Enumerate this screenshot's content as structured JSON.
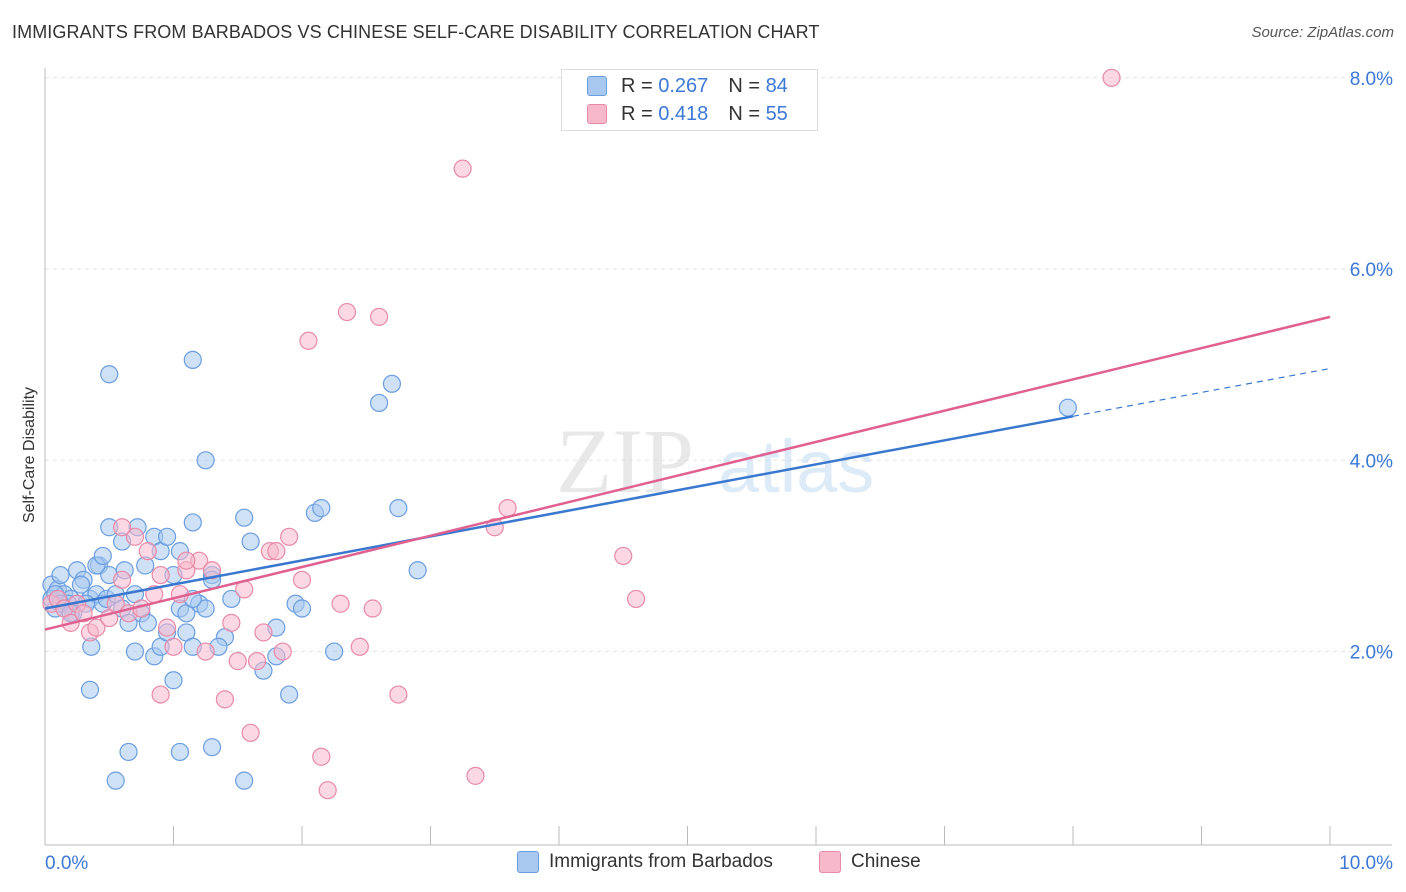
{
  "header": {
    "title": "IMMIGRANTS FROM BARBADOS VS CHINESE SELF-CARE DISABILITY CORRELATION CHART",
    "source": "Source: ZipAtlas.com"
  },
  "legend": {
    "rows": [
      {
        "r_label": "R =",
        "r_value": "0.267",
        "n_label": "N =",
        "n_value": "84"
      },
      {
        "r_label": "R =",
        "r_value": "0.418",
        "n_label": "N =",
        "n_value": "55"
      }
    ],
    "series_labels": [
      "Immigrants from Barbados",
      "Chinese"
    ]
  },
  "watermark": {
    "zip": "ZIP",
    "atlas": "atlas"
  },
  "colors": {
    "barbados_fill": "#a8c8f0",
    "barbados_stroke": "#6a9ee0",
    "barbados_line": "#3a78d0",
    "chinese_fill": "#f7b8cc",
    "chinese_stroke": "#e88aa8",
    "chinese_line": "#e06090",
    "axis_text": "#3c78d8"
  },
  "chart_data": {
    "type": "scatter",
    "title": "IMMIGRANTS FROM BARBADOS VS CHINESE SELF-CARE DISABILITY CORRELATION CHART",
    "xlabel": "",
    "ylabel": "Self-Care Disability",
    "xlim": [
      0,
      10
    ],
    "ylim": [
      0,
      8
    ],
    "x_tick_labels": [
      "0.0%",
      "10.0%"
    ],
    "y_ticks": [
      2,
      4,
      6,
      8
    ],
    "y_tick_labels": [
      "2.0%",
      "4.0%",
      "6.0%",
      "8.0%"
    ],
    "grid": true,
    "legend_position": "top-center",
    "series": [
      {
        "name": "Immigrants from Barbados",
        "r": 0.267,
        "n": 84,
        "trend": {
          "x0": 0,
          "y0": 2.45,
          "x1": 8.0,
          "y1": 4.46,
          "dashed_to_x": 10.0,
          "dashed_to_y": 4.96
        },
        "points": [
          [
            0.05,
            2.7
          ],
          [
            0.1,
            2.65
          ],
          [
            0.15,
            2.6
          ],
          [
            0.2,
            2.55
          ],
          [
            0.08,
            2.45
          ],
          [
            0.12,
            2.8
          ],
          [
            0.18,
            2.5
          ],
          [
            0.22,
            2.4
          ],
          [
            0.25,
            2.85
          ],
          [
            0.3,
            2.75
          ],
          [
            0.35,
            2.55
          ],
          [
            0.4,
            2.6
          ],
          [
            0.45,
            2.5
          ],
          [
            0.28,
            2.7
          ],
          [
            0.32,
            2.5
          ],
          [
            0.36,
            2.05
          ],
          [
            0.42,
            2.9
          ],
          [
            0.48,
            2.55
          ],
          [
            0.5,
            2.8
          ],
          [
            0.55,
            2.6
          ],
          [
            0.6,
            2.45
          ],
          [
            0.62,
            2.85
          ],
          [
            0.65,
            2.3
          ],
          [
            0.7,
            2.0
          ],
          [
            0.75,
            2.4
          ],
          [
            0.8,
            2.3
          ],
          [
            0.85,
            1.95
          ],
          [
            0.9,
            2.05
          ],
          [
            0.95,
            2.2
          ],
          [
            1.0,
            2.8
          ],
          [
            1.05,
            2.45
          ],
          [
            1.1,
            2.2
          ],
          [
            1.15,
            2.05
          ],
          [
            1.2,
            2.5
          ],
          [
            1.3,
            2.8
          ],
          [
            1.4,
            2.15
          ],
          [
            0.35,
            1.6
          ],
          [
            0.5,
            3.3
          ],
          [
            0.6,
            3.15
          ],
          [
            0.72,
            3.3
          ],
          [
            0.78,
            2.9
          ],
          [
            0.85,
            3.2
          ],
          [
            0.9,
            3.05
          ],
          [
            0.95,
            3.2
          ],
          [
            1.05,
            3.05
          ],
          [
            1.25,
            2.45
          ],
          [
            1.35,
            2.05
          ],
          [
            1.45,
            2.55
          ],
          [
            1.55,
            3.4
          ],
          [
            1.6,
            3.15
          ],
          [
            1.7,
            1.8
          ],
          [
            1.8,
            1.95
          ],
          [
            1.9,
            1.55
          ],
          [
            1.95,
            2.5
          ],
          [
            2.0,
            2.45
          ],
          [
            2.1,
            3.45
          ],
          [
            2.25,
            2.0
          ],
          [
            1.0,
            1.7
          ],
          [
            1.25,
            4.0
          ],
          [
            1.15,
            3.35
          ],
          [
            0.5,
            4.9
          ],
          [
            1.15,
            5.05
          ],
          [
            2.15,
            3.5
          ],
          [
            2.9,
            2.85
          ],
          [
            2.6,
            4.6
          ],
          [
            2.7,
            4.8
          ],
          [
            2.75,
            3.5
          ],
          [
            7.96,
            4.55
          ],
          [
            0.55,
            0.65
          ],
          [
            0.65,
            0.95
          ],
          [
            1.05,
            0.95
          ],
          [
            1.3,
            1.0
          ],
          [
            1.55,
            0.65
          ],
          [
            0.05,
            2.55
          ],
          [
            0.08,
            2.6
          ],
          [
            0.12,
            2.5
          ],
          [
            0.2,
            2.4
          ],
          [
            0.4,
            2.9
          ],
          [
            1.1,
            2.4
          ],
          [
            1.3,
            2.75
          ],
          [
            1.8,
            2.25
          ],
          [
            0.45,
            3.0
          ],
          [
            0.7,
            2.6
          ],
          [
            1.15,
            2.55
          ]
        ]
      },
      {
        "name": "Chinese",
        "r": 0.418,
        "n": 55,
        "trend": {
          "x0": 0,
          "y0": 2.23,
          "x1": 10.0,
          "y1": 5.5
        },
        "points": [
          [
            0.05,
            2.5
          ],
          [
            0.1,
            2.55
          ],
          [
            0.15,
            2.45
          ],
          [
            0.2,
            2.3
          ],
          [
            0.25,
            2.5
          ],
          [
            0.3,
            2.4
          ],
          [
            0.35,
            2.2
          ],
          [
            0.4,
            2.25
          ],
          [
            0.5,
            2.35
          ],
          [
            0.55,
            2.5
          ],
          [
            0.6,
            2.75
          ],
          [
            0.65,
            2.4
          ],
          [
            0.7,
            3.2
          ],
          [
            0.75,
            2.45
          ],
          [
            0.8,
            3.05
          ],
          [
            0.85,
            2.6
          ],
          [
            0.9,
            2.8
          ],
          [
            0.95,
            2.25
          ],
          [
            1.0,
            2.05
          ],
          [
            1.05,
            2.6
          ],
          [
            1.1,
            2.85
          ],
          [
            1.2,
            2.95
          ],
          [
            1.25,
            2.0
          ],
          [
            1.3,
            2.85
          ],
          [
            1.4,
            1.5
          ],
          [
            1.45,
            2.3
          ],
          [
            1.5,
            1.9
          ],
          [
            1.55,
            2.65
          ],
          [
            1.6,
            1.15
          ],
          [
            1.65,
            1.9
          ],
          [
            1.7,
            2.2
          ],
          [
            1.75,
            3.05
          ],
          [
            1.8,
            3.05
          ],
          [
            1.85,
            2.0
          ],
          [
            1.9,
            3.2
          ],
          [
            2.0,
            2.75
          ],
          [
            2.05,
            5.25
          ],
          [
            2.15,
            0.9
          ],
          [
            2.2,
            0.55
          ],
          [
            2.3,
            2.5
          ],
          [
            2.35,
            5.55
          ],
          [
            2.45,
            2.05
          ],
          [
            2.55,
            2.45
          ],
          [
            2.75,
            1.55
          ],
          [
            3.25,
            7.05
          ],
          [
            3.35,
            0.7
          ],
          [
            3.5,
            3.3
          ],
          [
            3.6,
            3.5
          ],
          [
            4.6,
            2.55
          ],
          [
            4.5,
            3.0
          ],
          [
            8.3,
            8.0
          ],
          [
            0.6,
            3.3
          ],
          [
            1.1,
            2.95
          ],
          [
            0.9,
            1.55
          ],
          [
            2.6,
            5.5
          ]
        ]
      }
    ]
  }
}
